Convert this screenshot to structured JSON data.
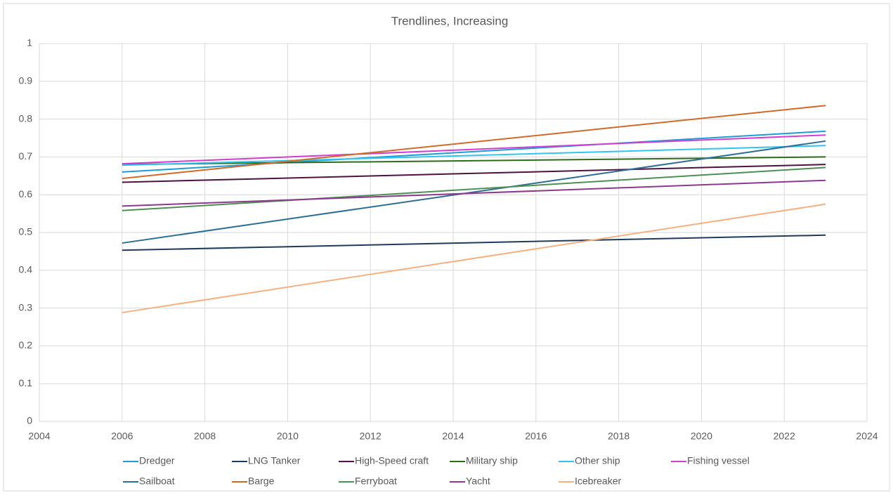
{
  "chart_data": {
    "type": "line",
    "title": "Trendlines, Increasing",
    "x": [
      2006,
      2023
    ],
    "xlim": [
      2004,
      2024
    ],
    "xticks": [
      2004,
      2006,
      2008,
      2010,
      2012,
      2014,
      2016,
      2018,
      2020,
      2022,
      2024
    ],
    "ylim": [
      0,
      1
    ],
    "yticks": [
      0,
      0.1,
      0.2,
      0.3,
      0.4,
      0.5,
      0.6,
      0.7,
      0.8,
      0.9,
      1
    ],
    "grid": true,
    "legend": "bottom",
    "series": [
      {
        "name": "Dredger",
        "color": "#1f9bd7",
        "values": [
          0.66,
          0.768
        ]
      },
      {
        "name": "LNG Tanker",
        "color": "#1f3b5c",
        "values": [
          0.453,
          0.493
        ]
      },
      {
        "name": "High-Speed craft",
        "color": "#4d1240",
        "values": [
          0.633,
          0.68
        ]
      },
      {
        "name": "Military ship",
        "color": "#2e6b1e",
        "values": [
          0.68,
          0.7
        ]
      },
      {
        "name": "Other ship",
        "color": "#33c3f0",
        "values": [
          0.678,
          0.73
        ]
      },
      {
        "name": "Fishing vessel",
        "color": "#d23fd0",
        "values": [
          0.682,
          0.758
        ]
      },
      {
        "name": "Sailboat",
        "color": "#2f6d92",
        "values": [
          0.472,
          0.742
        ]
      },
      {
        "name": "Barge",
        "color": "#d06a2a",
        "values": [
          0.643,
          0.836
        ]
      },
      {
        "name": "Ferryboat",
        "color": "#4e8f55",
        "values": [
          0.558,
          0.672
        ]
      },
      {
        "name": "Yacht",
        "color": "#8c3a8c",
        "values": [
          0.57,
          0.638
        ]
      },
      {
        "name": "Icebreaker",
        "color": "#f4b183",
        "values": [
          0.288,
          0.575
        ]
      }
    ]
  }
}
